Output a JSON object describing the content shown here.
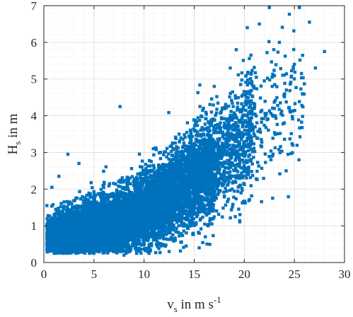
{
  "chart_data": {
    "type": "scatter",
    "xlabel": {
      "main": "v",
      "sub": "s",
      "rest": " in m s",
      "sup": "-1"
    },
    "ylabel": {
      "main": "H",
      "sub": "s",
      "rest": " in m"
    },
    "xlim": [
      0,
      30
    ],
    "ylim": [
      0,
      7
    ],
    "xticks": [
      "0",
      "5",
      "10",
      "15",
      "20",
      "25",
      "30"
    ],
    "yticks": [
      "0",
      "1",
      "2",
      "3",
      "4",
      "5",
      "6",
      "7"
    ],
    "grid": true,
    "minor_grid": true,
    "color": "#0072BD",
    "outliers": [
      [
        7.6,
        4.25
      ],
      [
        2.4,
        2.95
      ],
      [
        0.8,
        2.05
      ],
      [
        25.5,
        6.95
      ],
      [
        22.5,
        6.95
      ],
      [
        26.5,
        6.55
      ],
      [
        28.0,
        5.75
      ],
      [
        27.1,
        5.3
      ],
      [
        25.0,
        5.4
      ],
      [
        21.5,
        6.5
      ],
      [
        20.3,
        6.4
      ],
      [
        23.5,
        6.0
      ],
      [
        19.2,
        5.8
      ],
      [
        24.2,
        4.7
      ],
      [
        24.6,
        4.1
      ],
      [
        17.0,
        4.8
      ],
      [
        18.6,
        5.3
      ],
      [
        22.0,
        4.95
      ],
      [
        20.5,
        4.4
      ],
      [
        14.2,
        0.45
      ],
      [
        8.0,
        0.2
      ],
      [
        10.5,
        0.25
      ],
      [
        12.5,
        0.3
      ],
      [
        0.3,
        1.55
      ],
      [
        19.1,
        1.25
      ],
      [
        23.6,
        4.35
      ],
      [
        21.2,
        5.05
      ],
      [
        25.8,
        4.6
      ],
      [
        15.5,
        0.4
      ],
      [
        3.5,
        2.7
      ],
      [
        1.5,
        2.35
      ],
      [
        16.4,
        1.0
      ],
      [
        22.8,
        2.9
      ],
      [
        20.0,
        2.6
      ]
    ],
    "density_bands": [
      {
        "x_min": 0.3,
        "x_max": 3,
        "y_center_start": 0.75,
        "y_center_end": 0.85,
        "spread_start": 0.22,
        "spread_end": 0.35,
        "count": 1300
      },
      {
        "x_min": 3,
        "x_max": 8,
        "y_center_start": 0.85,
        "y_center_end": 1.15,
        "spread_start": 0.35,
        "spread_end": 0.45,
        "count": 2400
      },
      {
        "x_min": 8,
        "x_max": 13,
        "y_center_start": 1.15,
        "y_center_end": 1.85,
        "spread_start": 0.45,
        "spread_end": 0.55,
        "count": 2400
      },
      {
        "x_min": 13,
        "x_max": 17,
        "y_center_start": 1.85,
        "y_center_end": 2.7,
        "spread_start": 0.55,
        "spread_end": 0.7,
        "count": 1700
      },
      {
        "x_min": 17,
        "x_max": 21,
        "y_center_start": 2.7,
        "y_center_end": 3.7,
        "spread_start": 0.7,
        "spread_end": 0.85,
        "count": 650
      },
      {
        "x_min": 21,
        "x_max": 26,
        "y_center_start": 3.7,
        "y_center_end": 4.7,
        "spread_start": 0.85,
        "spread_end": 1.0,
        "count": 160
      }
    ]
  }
}
